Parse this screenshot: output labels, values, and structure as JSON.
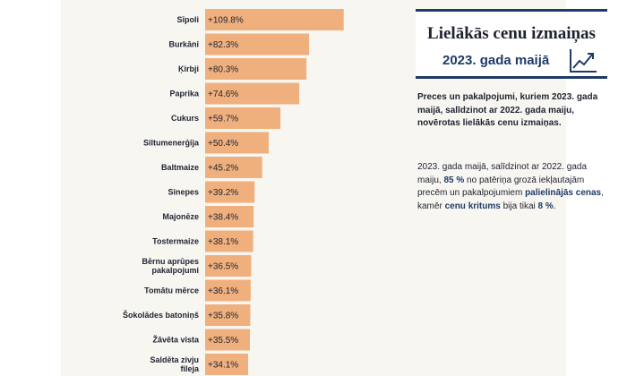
{
  "header": {
    "title": "Lielākās cenu izmaiņas",
    "subtitle": "2023. gada maijā"
  },
  "icons": {
    "title_icon": "trend-up-chart-icon"
  },
  "description": "Preces un pakalpojumi, kuriem 2023. gada maijā, salīdzinot ar 2022. gada maiju, novērotas lielākās cenu izmaiņas.",
  "note": {
    "intro": "2023. gada maijā, salīdzinot ar 2022. gada maiju,",
    "pct_up": "85 %",
    "mid": "no patēriņa grozā iekļautajām precēm un pakalpojumiem",
    "up_phrase": "palielinājās cenas",
    "comma_text": ", kamēr",
    "down_phrase": "cenu kritums",
    "tail": "bija tikai",
    "pct_down": "8 %",
    "end": "."
  },
  "colors": {
    "bar": "#f0b07e",
    "accent": "#1f3a68",
    "background": "#f8f6f1"
  },
  "chart_data": {
    "type": "bar",
    "orientation": "horizontal",
    "title": "",
    "xlabel": "",
    "ylabel": "",
    "unit": "%",
    "xlim": [
      0,
      110
    ],
    "grid": false,
    "categories": [
      "Sīpoli",
      "Burkāni",
      "Ķirbji",
      "Paprika",
      "Cukurs",
      "Siltumenerģija",
      "Baltmaize",
      "Sinepes",
      "Majonēze",
      "Tostermaize",
      "Bērnu aprūpes pakalpojumi",
      "Tomātu mērce",
      "Šokolādes batoniņš",
      "Žāvēta vista",
      "Saldēta zivju fileja"
    ],
    "values": [
      109.8,
      82.3,
      80.3,
      74.6,
      59.7,
      50.4,
      45.2,
      39.2,
      38.4,
      38.1,
      36.5,
      36.1,
      35.8,
      35.5,
      34.1
    ],
    "value_labels": [
      "+109.8%",
      "+82.3%",
      "+80.3%",
      "+74.6%",
      "+59.7%",
      "+50.4%",
      "+45.2%",
      "+39.2%",
      "+38.4%",
      "+38.1%",
      "+36.5%",
      "+36.1%",
      "+35.8%",
      "+35.5%",
      "+34.1%"
    ]
  }
}
